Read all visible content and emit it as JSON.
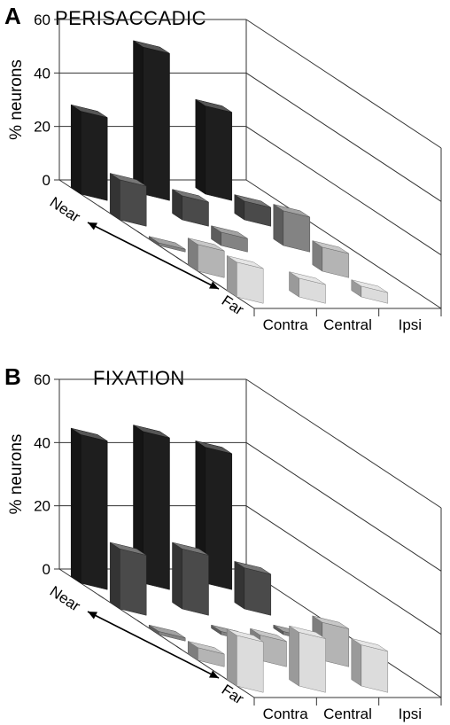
{
  "panels": [
    {
      "letter": "A",
      "title": "PERISACCADIC"
    },
    {
      "letter": "B",
      "title": "FIXATION"
    }
  ],
  "chart_data": [
    {
      "type": "bar",
      "title": "PERISACCADIC",
      "ylabel": "% neurons",
      "ylim": [
        0,
        60
      ],
      "yticks": [
        "0",
        "20",
        "40",
        "60"
      ],
      "categories": [
        "Contra",
        "Central",
        "Ipsi"
      ],
      "depth_labels": [
        "Near",
        "Far"
      ],
      "grid": true,
      "colors": [
        "#1e1e1e",
        "#4a4a4a",
        "#838383",
        "#b4b4b4",
        "#dcdcdc"
      ],
      "series": [
        {
          "values": [
            31,
            55,
            33
          ]
        },
        {
          "values": [
            15,
            9,
            7
          ]
        },
        {
          "values": [
            1,
            5,
            13
          ]
        },
        {
          "values": [
            10,
            0,
            9
          ]
        },
        {
          "values": [
            13,
            7,
            4
          ]
        }
      ]
    },
    {
      "type": "bar",
      "title": "FIXATION",
      "ylabel": "% neurons",
      "ylim": [
        0,
        60
      ],
      "yticks": [
        "0",
        "20",
        "40",
        "60"
      ],
      "categories": [
        "Contra",
        "Central",
        "Ipsi"
      ],
      "depth_labels": [
        "Near",
        "Far"
      ],
      "grid": true,
      "colors": [
        "#1e1e1e",
        "#4a4a4a",
        "#838383",
        "#b4b4b4",
        "#dcdcdc"
      ],
      "series": [
        {
          "values": [
            47,
            48,
            43
          ]
        },
        {
          "values": [
            19,
            19,
            13
          ]
        },
        {
          "values": [
            1,
            1,
            1
          ]
        },
        {
          "values": [
            4,
            8,
            12
          ]
        },
        {
          "values": [
            16,
            17,
            13
          ]
        }
      ]
    }
  ]
}
